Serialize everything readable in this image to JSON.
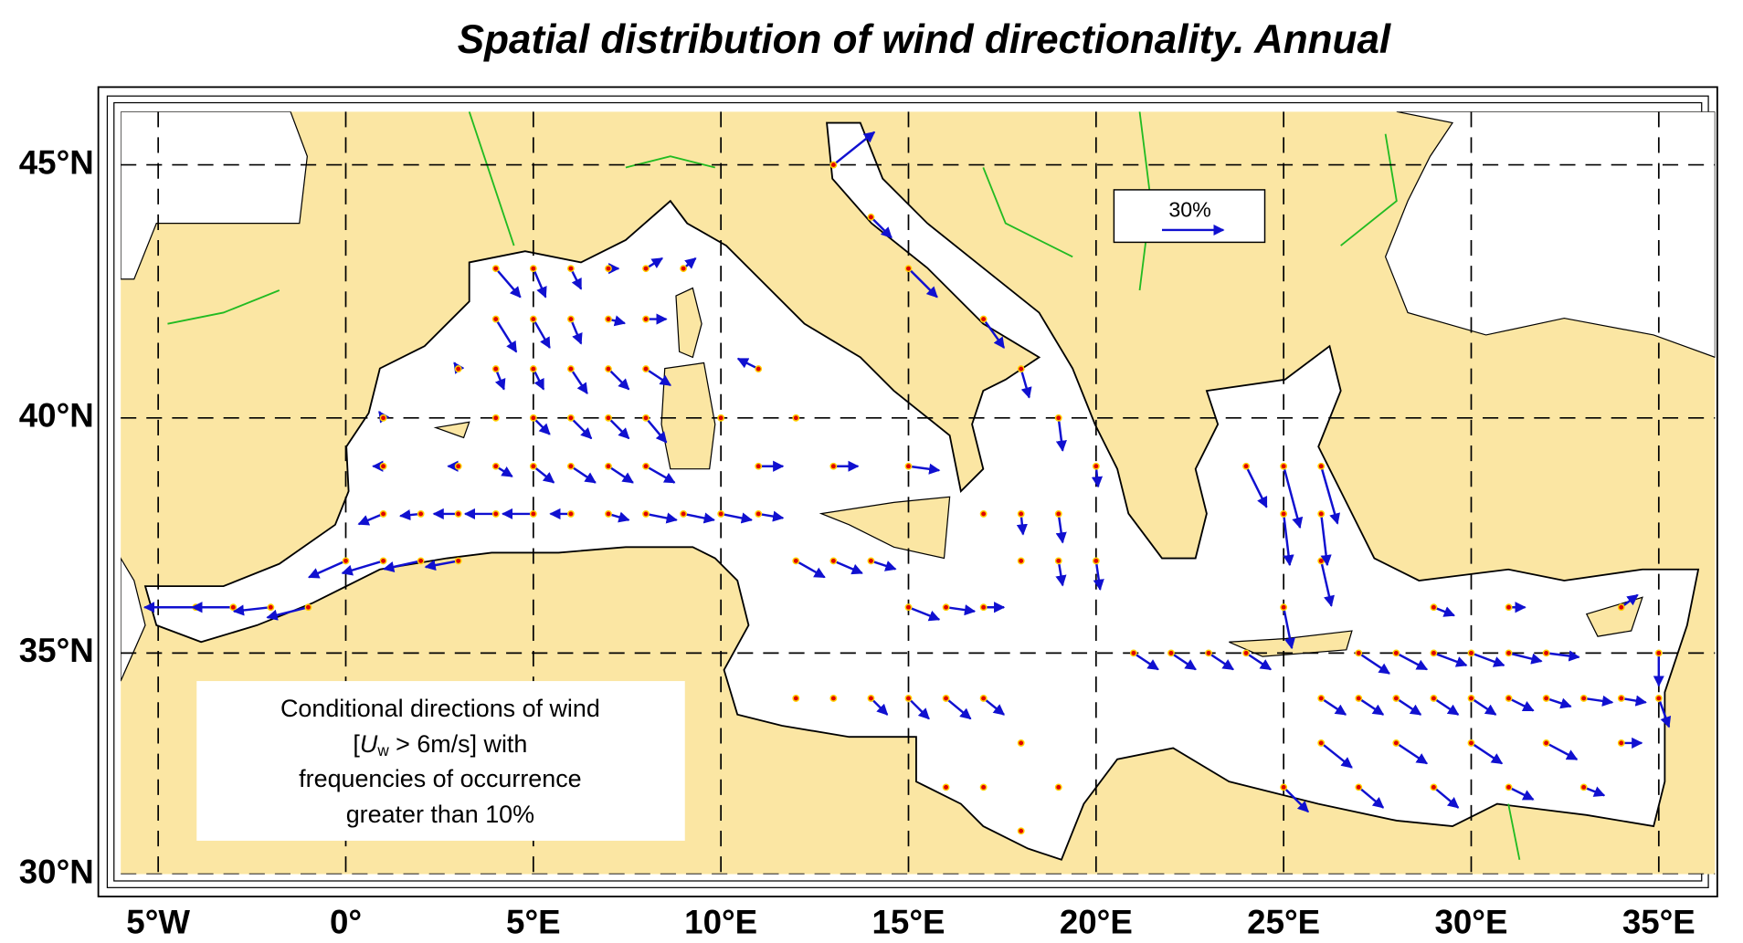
{
  "title": "Spatial distribution of wind directionality.   Annual",
  "map": {
    "xlim": [
      -6,
      36.5
    ],
    "ylim": [
      30,
      46
    ],
    "xticks": [
      {
        "value": -5,
        "label": "5°W"
      },
      {
        "value": 0,
        "label": "0°"
      },
      {
        "value": 5,
        "label": "5°E"
      },
      {
        "value": 10,
        "label": "10°E"
      },
      {
        "value": 15,
        "label": "15°E"
      },
      {
        "value": 20,
        "label": "20°E"
      },
      {
        "value": 25,
        "label": "25°E"
      },
      {
        "value": 30,
        "label": "30°E"
      },
      {
        "value": 35,
        "label": "35°E"
      }
    ],
    "yticks": [
      {
        "value": 30,
        "label": "30°N"
      },
      {
        "value": 35,
        "label": "35°N"
      },
      {
        "value": 40,
        "label": "40°N"
      },
      {
        "value": 45,
        "label": "45°N"
      }
    ],
    "grid": true
  },
  "scale": {
    "value": 30,
    "label": "30%"
  },
  "legend": {
    "line1": "Conditional directions of wind",
    "line2": {
      "open": "[",
      "var": "U",
      "sub": "w",
      "rest": " > 6m/s] with"
    },
    "line3": "frequencies of occurrence",
    "line4": "greater than 10%"
  },
  "arrows": [
    [
      -4,
      36,
      -25,
      0
    ],
    [
      -3,
      36,
      -20,
      0
    ],
    [
      -2,
      36,
      -18,
      -2
    ],
    [
      -1,
      36,
      -20,
      -5
    ],
    [
      0,
      37,
      -18,
      -8
    ],
    [
      1,
      37,
      -20,
      -6
    ],
    [
      2,
      37,
      -18,
      -4
    ],
    [
      3,
      37,
      -16,
      -3
    ],
    [
      1,
      38,
      -12,
      -5
    ],
    [
      2,
      38,
      -10,
      -1
    ],
    [
      3,
      38,
      -12,
      0
    ],
    [
      4,
      38,
      -15,
      0
    ],
    [
      5,
      38,
      -15,
      0
    ],
    [
      6,
      38,
      -10,
      0
    ],
    [
      7,
      38,
      10,
      -3
    ],
    [
      8,
      38,
      15,
      -3
    ],
    [
      9,
      38,
      15,
      -3
    ],
    [
      10,
      38,
      15,
      -3
    ],
    [
      11,
      38,
      12,
      -2
    ],
    [
      1,
      39,
      -5,
      0
    ],
    [
      3,
      39,
      -5,
      0
    ],
    [
      4,
      39,
      8,
      -5
    ],
    [
      5,
      39,
      10,
      -8
    ],
    [
      6,
      39,
      12,
      -8
    ],
    [
      7,
      39,
      12,
      -8
    ],
    [
      8,
      39,
      14,
      -8
    ],
    [
      11,
      39,
      12,
      0
    ],
    [
      13,
      39,
      12,
      0
    ],
    [
      15,
      39,
      15,
      -2
    ],
    [
      1,
      40,
      -2,
      3
    ],
    [
      4,
      40,
      0,
      0
    ],
    [
      5,
      40,
      8,
      -8
    ],
    [
      6,
      40,
      10,
      -10
    ],
    [
      7,
      40,
      10,
      -10
    ],
    [
      8,
      40,
      10,
      -12
    ],
    [
      10,
      40,
      0,
      0
    ],
    [
      12,
      40,
      0,
      0
    ],
    [
      3,
      41,
      -2,
      3
    ],
    [
      4,
      41,
      4,
      -10
    ],
    [
      5,
      41,
      5,
      -10
    ],
    [
      6,
      41,
      8,
      -12
    ],
    [
      7,
      41,
      10,
      -10
    ],
    [
      8,
      41,
      12,
      -8
    ],
    [
      11,
      41,
      -10,
      5
    ],
    [
      4,
      42,
      10,
      -16
    ],
    [
      5,
      42,
      8,
      -14
    ],
    [
      6,
      42,
      5,
      -12
    ],
    [
      7,
      42,
      8,
      -2
    ],
    [
      8,
      42,
      10,
      0
    ],
    [
      4,
      43,
      12,
      -14
    ],
    [
      5,
      43,
      6,
      -14
    ],
    [
      6,
      43,
      5,
      -10
    ],
    [
      7,
      43,
      5,
      0
    ],
    [
      8,
      43,
      8,
      5
    ],
    [
      9,
      43,
      6,
      5
    ],
    [
      12,
      37,
      14,
      -8
    ],
    [
      13,
      37,
      14,
      -6
    ],
    [
      14,
      37,
      12,
      -4
    ],
    [
      15,
      36,
      15,
      -6
    ],
    [
      16,
      36,
      14,
      -2
    ],
    [
      17,
      36,
      10,
      0
    ],
    [
      18,
      37,
      0,
      0
    ],
    [
      19,
      37,
      2,
      -12
    ],
    [
      20,
      37,
      2,
      -14
    ],
    [
      17,
      38,
      0,
      0
    ],
    [
      18,
      38,
      1,
      -10
    ],
    [
      19,
      38,
      2,
      -14
    ],
    [
      20,
      39,
      1,
      -10
    ],
    [
      19,
      40,
      2,
      -16
    ],
    [
      18,
      41,
      4,
      -14
    ],
    [
      17,
      42,
      10,
      -14
    ],
    [
      15,
      43,
      14,
      -14
    ],
    [
      14,
      44,
      10,
      -10
    ],
    [
      13,
      45,
      20,
      16
    ],
    [
      12,
      34,
      0,
      0
    ],
    [
      13,
      34,
      0,
      0
    ],
    [
      14,
      34,
      8,
      -8
    ],
    [
      15,
      34,
      10,
      -10
    ],
    [
      16,
      34,
      12,
      -10
    ],
    [
      17,
      34,
      10,
      -8
    ],
    [
      18,
      33,
      0,
      0
    ],
    [
      19,
      32,
      0,
      0
    ],
    [
      16,
      32,
      0,
      0
    ],
    [
      17,
      32,
      0,
      0
    ],
    [
      18,
      31,
      0,
      0
    ],
    [
      21,
      35,
      12,
      -8
    ],
    [
      22,
      35,
      12,
      -8
    ],
    [
      23,
      35,
      12,
      -8
    ],
    [
      24,
      35,
      12,
      -8
    ],
    [
      25,
      36,
      4,
      -20
    ],
    [
      26,
      37,
      5,
      -22
    ],
    [
      25,
      38,
      3,
      -25
    ],
    [
      26,
      38,
      3,
      -25
    ],
    [
      25,
      39,
      8,
      -30
    ],
    [
      26,
      39,
      8,
      -28
    ],
    [
      24,
      39,
      10,
      -20
    ],
    [
      27,
      35,
      15,
      -10
    ],
    [
      28,
      35,
      15,
      -8
    ],
    [
      29,
      35,
      16,
      -6
    ],
    [
      30,
      35,
      16,
      -6
    ],
    [
      31,
      35,
      16,
      -4
    ],
    [
      32,
      35,
      16,
      -2
    ],
    [
      33,
      34,
      14,
      -2
    ],
    [
      34,
      34,
      12,
      -2
    ],
    [
      26,
      34,
      12,
      -8
    ],
    [
      27,
      34,
      12,
      -8
    ],
    [
      28,
      34,
      12,
      -8
    ],
    [
      29,
      34,
      12,
      -8
    ],
    [
      30,
      34,
      12,
      -8
    ],
    [
      31,
      34,
      12,
      -6
    ],
    [
      32,
      34,
      12,
      -4
    ],
    [
      26,
      33,
      15,
      -12
    ],
    [
      28,
      33,
      15,
      -10
    ],
    [
      30,
      33,
      15,
      -10
    ],
    [
      32,
      33,
      15,
      -8
    ],
    [
      34,
      33,
      10,
      0
    ],
    [
      25,
      32,
      12,
      -12
    ],
    [
      27,
      32,
      12,
      -10
    ],
    [
      29,
      32,
      12,
      -10
    ],
    [
      31,
      32,
      12,
      -6
    ],
    [
      33,
      32,
      10,
      -4
    ],
    [
      34,
      36,
      8,
      6
    ],
    [
      35,
      35,
      0,
      -16
    ],
    [
      35,
      34,
      5,
      -14
    ],
    [
      29,
      36,
      10,
      -4
    ],
    [
      31,
      36,
      8,
      0
    ]
  ]
}
